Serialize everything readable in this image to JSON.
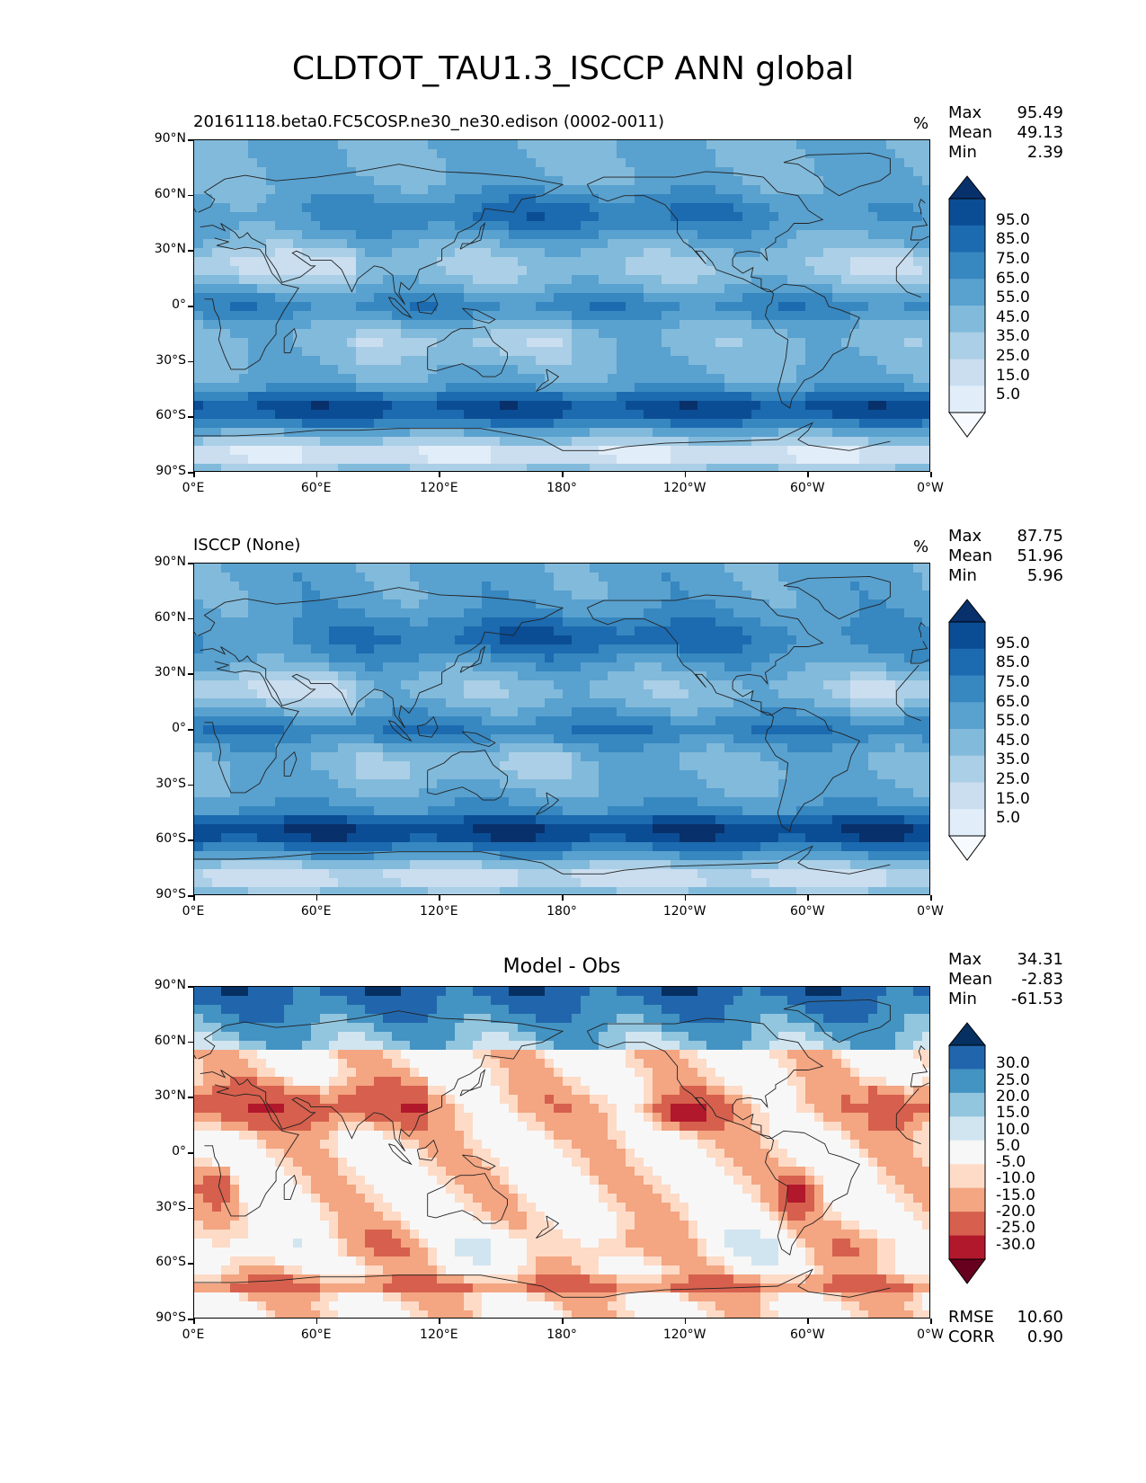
{
  "title": "CLDTOT_TAU1.3_ISCCP ANN global",
  "y_ticks": [
    "90°N",
    "60°N",
    "30°N",
    "0°",
    "30°S",
    "60°S",
    "90°S"
  ],
  "x_ticks": [
    "0°E",
    "60°E",
    "120°E",
    "180°",
    "120°W",
    "60°W",
    "0°W"
  ],
  "panels": [
    {
      "left_title": "20161118.beta0.FC5COSP.ne30_ne30.edison (0002-0011)",
      "center_title": "",
      "units": "%",
      "stats": {
        "max_label": "Max",
        "max": "95.49",
        "mean_label": "Mean",
        "mean": "49.13",
        "min_label": "Min",
        "min": "2.39"
      },
      "cbar_labels": [
        "95.0",
        "85.0",
        "75.0",
        "65.0",
        "55.0",
        "45.0",
        "35.0",
        "25.0",
        "15.0",
        "5.0"
      ],
      "cmap": "blues"
    },
    {
      "left_title": "ISCCP (None)",
      "center_title": "",
      "units": "%",
      "stats": {
        "max_label": "Max",
        "max": "87.75",
        "mean_label": "Mean",
        "mean": "51.96",
        "min_label": "Min",
        "min": "5.96"
      },
      "cbar_labels": [
        "95.0",
        "85.0",
        "75.0",
        "65.0",
        "55.0",
        "45.0",
        "35.0",
        "25.0",
        "15.0",
        "5.0"
      ],
      "cmap": "blues"
    },
    {
      "left_title": "",
      "center_title": "Model - Obs",
      "units": "",
      "stats": {
        "max_label": "Max",
        "max": "34.31",
        "mean_label": "Mean",
        "mean": "-2.83",
        "min_label": "Min",
        "min": "-61.53"
      },
      "cbar_labels": [
        "30.0",
        "25.0",
        "20.0",
        "15.0",
        "10.0",
        "5.0",
        "-5.0",
        "-10.0",
        "-15.0",
        "-20.0",
        "-25.0",
        "-30.0"
      ],
      "cmap": "rdbu",
      "footer": {
        "rmse_label": "RMSE",
        "rmse": "10.60",
        "corr_label": "CORR",
        "corr": "0.90"
      }
    }
  ],
  "colors": {
    "blues": [
      "#f7fbff",
      "#e1edf8",
      "#cadef0",
      "#abcfe6",
      "#82badb",
      "#59a1cf",
      "#3787c0",
      "#1c6aaf",
      "#0b4d94",
      "#08306b"
    ],
    "rdbu": [
      "#67001f",
      "#b2182b",
      "#d6604d",
      "#f4a582",
      "#fddbc7",
      "#f7f7f7",
      "#d1e5f0",
      "#92c5de",
      "#4393c3",
      "#2166ac",
      "#053061"
    ]
  }
}
